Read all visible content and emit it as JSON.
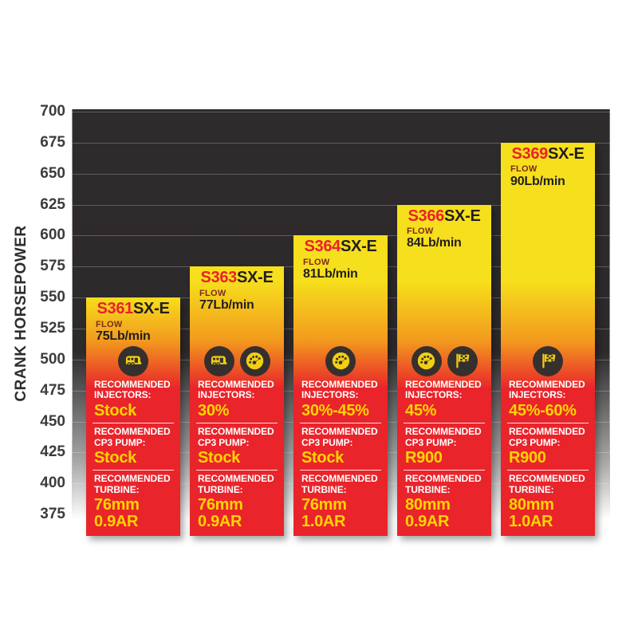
{
  "chart_data": {
    "type": "bar",
    "title": "",
    "xlabel": "",
    "ylabel": "CRANK HORSEPOWER",
    "ylim": [
      350,
      700
    ],
    "yticks": [
      375,
      400,
      425,
      450,
      475,
      500,
      525,
      550,
      575,
      600,
      625,
      650,
      675,
      700
    ],
    "grid": true,
    "legend": false,
    "categories": [
      "S361SX-E",
      "S363SX-E",
      "S364SX-E",
      "S366SX-E",
      "S369SX-E"
    ],
    "values": [
      550,
      575,
      600,
      625,
      675
    ],
    "bars": [
      {
        "model_prefix": "S361",
        "model_suffix": "SX-E",
        "crank_horsepower": 550,
        "flow_label": "FLOW",
        "flow_value": "75Lb/min",
        "icons": [
          "rv-icon"
        ],
        "sections": [
          {
            "key": "injectors",
            "label": [
              "RECOMMENDED",
              "INJECTORS:"
            ],
            "value": [
              "Stock"
            ]
          },
          {
            "key": "cp3-pump",
            "label": [
              "RECOMMENDED",
              "CP3 PUMP:"
            ],
            "value": [
              "Stock"
            ]
          },
          {
            "key": "turbine",
            "label": [
              "RECOMMENDED",
              "TURBINE:"
            ],
            "value": [
              "76mm",
              "0.9AR"
            ]
          }
        ]
      },
      {
        "model_prefix": "S363",
        "model_suffix": "SX-E",
        "crank_horsepower": 575,
        "flow_label": "FLOW",
        "flow_value": "77Lb/min",
        "icons": [
          "rv-icon",
          "gauge-icon"
        ],
        "sections": [
          {
            "key": "injectors",
            "label": [
              "RECOMMENDED",
              "INJECTORS:"
            ],
            "value": [
              "30%"
            ]
          },
          {
            "key": "cp3-pump",
            "label": [
              "RECOMMENDED",
              "CP3 PUMP:"
            ],
            "value": [
              "Stock"
            ]
          },
          {
            "key": "turbine",
            "label": [
              "RECOMMENDED",
              "TURBINE:"
            ],
            "value": [
              "76mm",
              "0.9AR"
            ]
          }
        ]
      },
      {
        "model_prefix": "S364",
        "model_suffix": "SX-E",
        "crank_horsepower": 600,
        "flow_label": "FLOW",
        "flow_value": "81Lb/min",
        "icons": [
          "gauge-icon"
        ],
        "sections": [
          {
            "key": "injectors",
            "label": [
              "RECOMMENDED",
              "INJECTORS:"
            ],
            "value": [
              "30%-45%"
            ]
          },
          {
            "key": "cp3-pump",
            "label": [
              "RECOMMENDED",
              "CP3 PUMP:"
            ],
            "value": [
              "Stock"
            ]
          },
          {
            "key": "turbine",
            "label": [
              "RECOMMENDED",
              "TURBINE:"
            ],
            "value": [
              "76mm",
              "1.0AR"
            ]
          }
        ]
      },
      {
        "model_prefix": "S366",
        "model_suffix": "SX-E",
        "crank_horsepower": 625,
        "flow_label": "FLOW",
        "flow_value": "84Lb/min",
        "icons": [
          "gauge-icon",
          "flag-icon"
        ],
        "sections": [
          {
            "key": "injectors",
            "label": [
              "RECOMMENDED",
              "INJECTORS:"
            ],
            "value": [
              "45%"
            ]
          },
          {
            "key": "cp3-pump",
            "label": [
              "RECOMMENDED",
              "CP3 PUMP:"
            ],
            "value": [
              "R900"
            ]
          },
          {
            "key": "turbine",
            "label": [
              "RECOMMENDED",
              "TURBINE:"
            ],
            "value": [
              "80mm",
              "0.9AR"
            ]
          }
        ]
      },
      {
        "model_prefix": "S369",
        "model_suffix": "SX-E",
        "crank_horsepower": 675,
        "flow_label": "FLOW",
        "flow_value": "90Lb/min",
        "icons": [
          "flag-icon"
        ],
        "sections": [
          {
            "key": "injectors",
            "label": [
              "RECOMMENDED",
              "INJECTORS:"
            ],
            "value": [
              "45%-60%"
            ]
          },
          {
            "key": "cp3-pump",
            "label": [
              "RECOMMENDED",
              "CP3 PUMP:"
            ],
            "value": [
              "R900"
            ]
          },
          {
            "key": "turbine",
            "label": [
              "RECOMMENDED",
              "TURBINE:"
            ],
            "value": [
              "80mm",
              "1.0AR"
            ]
          }
        ]
      }
    ]
  },
  "colors": {
    "bar_yellow": "#f6df1c",
    "bar_orange": "#f29a1e",
    "bar_red": "#e9242b",
    "model_red": "#e8222b",
    "model_dark": "#221e1f",
    "flow_label": "#7c2b1e",
    "value_yellow": "#ffd400",
    "label_white": "#ffffff",
    "plot_dark": "#2e2b2c",
    "icon_circle": "#35302e",
    "icon_glyph": "#f2cf11"
  }
}
